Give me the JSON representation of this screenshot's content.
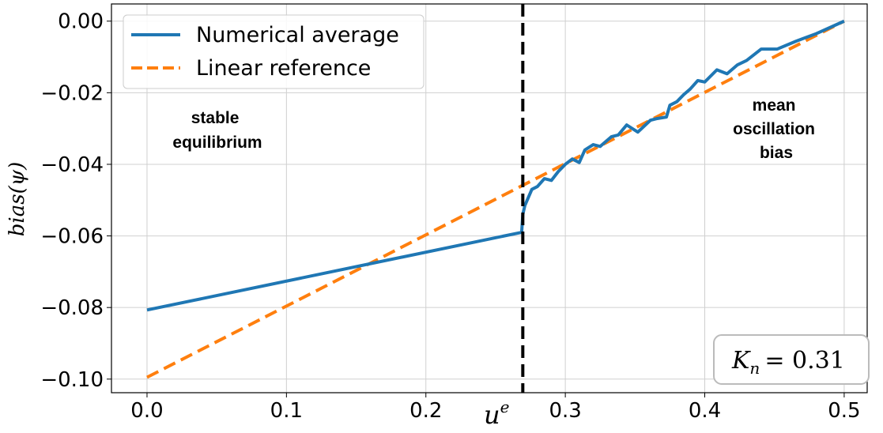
{
  "chart_data": {
    "type": "line",
    "xlabel": "u",
    "xlabel_superscript": "e",
    "ylabel": "bias(ψ)",
    "xlim": [
      -0.0255,
      0.5165
    ],
    "ylim": [
      -0.1038,
      0.0048
    ],
    "grid": true,
    "legend_placement": "top-left",
    "x_ticks": [
      "0.0",
      "0.1",
      "0.2",
      "0.3",
      "0.4",
      "0.5"
    ],
    "x_tick_values": [
      0,
      0.1,
      0.2,
      0.3,
      0.4,
      0.5
    ],
    "y_ticks": [
      "0.00",
      "−0.02",
      "−0.04",
      "−0.06",
      "−0.08",
      "−0.10"
    ],
    "y_tick_values": [
      0,
      -0.02,
      -0.04,
      -0.06,
      -0.08,
      -0.1
    ],
    "series": [
      {
        "name": "Numerical average",
        "color": "#1f77b4",
        "style": "solid",
        "x": [
          0,
          0.2687,
          0.2695,
          0.271,
          0.276,
          0.28,
          0.285,
          0.29,
          0.295,
          0.3,
          0.305,
          0.31,
          0.314,
          0.32,
          0.325,
          0.333,
          0.338,
          0.344,
          0.352,
          0.361,
          0.366,
          0.3725,
          0.375,
          0.38,
          0.385,
          0.3895,
          0.395,
          0.4,
          0.4087,
          0.416,
          0.4235,
          0.43,
          0.4405,
          0.452,
          0.4655,
          0.48,
          0.5
        ],
        "y": [
          -0.0807,
          -0.059,
          -0.054,
          -0.0515,
          -0.047,
          -0.0462,
          -0.044,
          -0.0445,
          -0.042,
          -0.04,
          -0.0385,
          -0.0395,
          -0.036,
          -0.0345,
          -0.035,
          -0.0323,
          -0.0318,
          -0.029,
          -0.031,
          -0.0277,
          -0.0272,
          -0.0268,
          -0.0235,
          -0.0225,
          -0.0205,
          -0.019,
          -0.0166,
          -0.017,
          -0.0136,
          -0.0147,
          -0.0122,
          -0.011,
          -0.0078,
          -0.0078,
          -0.0056,
          -0.0035,
          0.0
        ]
      },
      {
        "name": "Linear reference",
        "color": "#ff7f0e",
        "style": "dashed",
        "x": [
          0,
          0.5
        ],
        "y": [
          -0.0995,
          0.0
        ]
      }
    ],
    "vertical_line": {
      "x": 0.2695,
      "color": "#000000",
      "style": "dashed"
    },
    "annotations": [
      {
        "lines": [
          "stable",
          "equilibrium"
        ]
      },
      {
        "lines": [
          "mean",
          "oscillation",
          "bias"
        ]
      }
    ],
    "parameter_box": {
      "label": "K",
      "subscript": "n",
      "value": "= 0.31"
    }
  }
}
